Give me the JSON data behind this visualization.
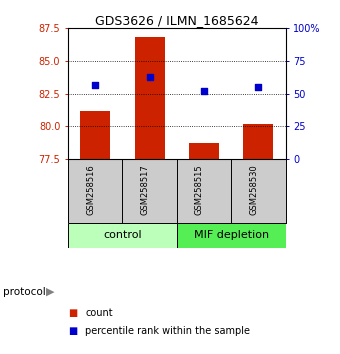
{
  "title": "GDS3626 / ILMN_1685624",
  "samples": [
    "GSM258516",
    "GSM258517",
    "GSM258515",
    "GSM258530"
  ],
  "bar_values": [
    81.2,
    86.8,
    78.7,
    80.2
  ],
  "percentile_values": [
    57,
    63,
    52,
    55
  ],
  "ylim_left": [
    77.5,
    87.5
  ],
  "ylim_right": [
    0,
    100
  ],
  "yticks_left": [
    77.5,
    80,
    82.5,
    85,
    87.5
  ],
  "yticks_right": [
    0,
    25,
    50,
    75,
    100
  ],
  "ytick_labels_right": [
    "0",
    "25",
    "50",
    "75",
    "100%"
  ],
  "bar_color": "#cc2200",
  "square_color": "#0000cc",
  "bar_bottom": 77.5,
  "groups": [
    {
      "label": "control",
      "samples": [
        "GSM258516",
        "GSM258517"
      ],
      "color": "#bbffbb"
    },
    {
      "label": "MIF depletion",
      "samples": [
        "GSM258515",
        "GSM258530"
      ],
      "color": "#55ee55"
    }
  ],
  "sample_bg_color": "#cccccc",
  "background_color": "#ffffff",
  "bar_width": 0.55,
  "title_fontsize": 9,
  "tick_fontsize": 7,
  "sample_fontsize": 6,
  "group_fontsize": 8,
  "legend_fontsize": 7
}
